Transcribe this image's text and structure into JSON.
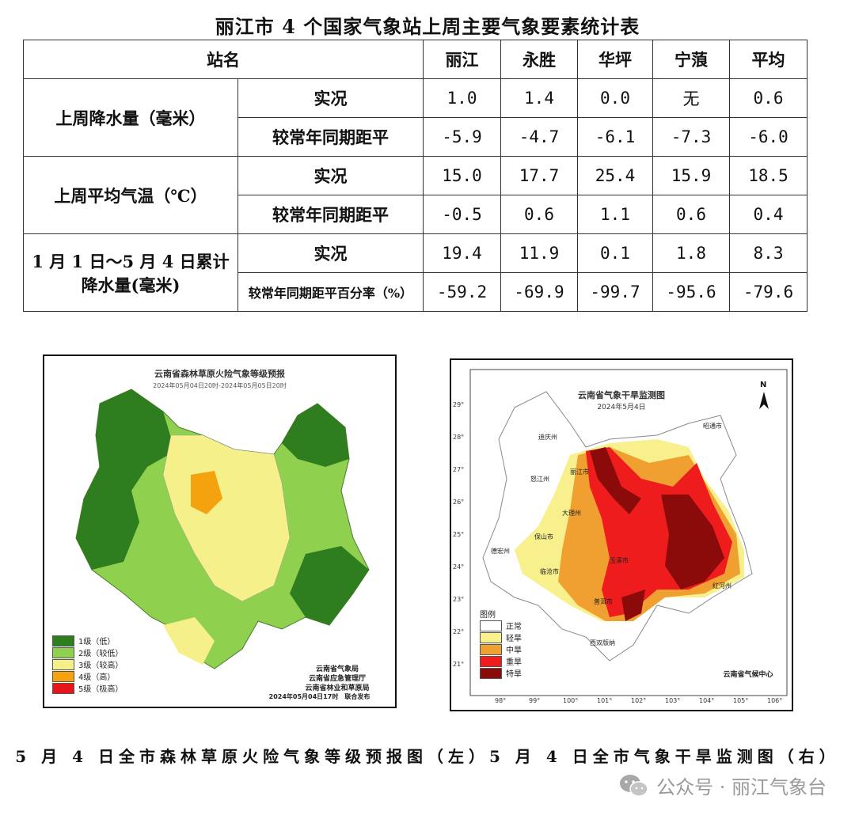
{
  "title": "丽江市 4 个国家气象站上周主要气象要素统计表",
  "table": {
    "header_label": "站名",
    "stations": [
      "丽江",
      "永胜",
      "华坪",
      "宁蒗",
      "平均"
    ],
    "groups": [
      {
        "name": "上周降水量（毫米）",
        "rows": [
          {
            "label": "实况",
            "values": [
              "1.0",
              "1.4",
              "0.0",
              "无",
              "0.6"
            ]
          },
          {
            "label": "较常年同期距平",
            "values": [
              "-5.9",
              "-4.7",
              "-6.1",
              "-7.3",
              "-6.0"
            ]
          }
        ]
      },
      {
        "name": "上周平均气温（℃）",
        "rows": [
          {
            "label": "实况",
            "values": [
              "15.0",
              "17.7",
              "25.4",
              "15.9",
              "18.5"
            ]
          },
          {
            "label": "较常年同期距平",
            "values": [
              "-0.5",
              "0.6",
              "1.1",
              "0.6",
              "0.4"
            ]
          }
        ]
      },
      {
        "name_line1": "1 月 1 日～5 月 4 日累计",
        "name_line2": "降水量(毫米)",
        "rows": [
          {
            "label": "实况",
            "values": [
              "19.4",
              "11.9",
              "0.1",
              "1.8",
              "8.3"
            ]
          },
          {
            "label": "较常年同期距平百分率（%）",
            "values": [
              "-59.2",
              "-69.9",
              "-99.7",
              "-95.6",
              "-79.6"
            ]
          }
        ]
      }
    ]
  },
  "fire_map": {
    "title": "云南省森林草原火险气象等级预报",
    "subtitle": "2024年05月04日20时-2024年05月05日20时",
    "legend": [
      {
        "label": "1级（低）",
        "color": "#2e7d1e"
      },
      {
        "label": "2级（较低）",
        "color": "#8fd14f"
      },
      {
        "label": "3级（较高）",
        "color": "#f5f08a"
      },
      {
        "label": "4级（高）",
        "color": "#f5a20f"
      },
      {
        "label": "5级（极高）",
        "color": "#e8141c"
      }
    ],
    "credit_lines": [
      "云南省气象局",
      "云南省应急管理厅",
      "云南省林业和草原局"
    ],
    "issued": "2024年05月04日17时　联合发布"
  },
  "drought_map": {
    "title": "云南省气象干旱监测图",
    "date": "2024年5月4日",
    "north": "N",
    "legend_title": "图例",
    "legend": [
      {
        "label": "正常",
        "color": "#ffffff"
      },
      {
        "label": "轻旱",
        "color": "#f7f08c"
      },
      {
        "label": "中旱",
        "color": "#f0a030"
      },
      {
        "label": "重旱",
        "color": "#ee1c1c"
      },
      {
        "label": "特旱",
        "color": "#8b0a0a"
      }
    ],
    "credit": "云南省气候中心",
    "lat_ticks": [
      "29°",
      "28°",
      "27°",
      "26°",
      "25°",
      "24°",
      "23°",
      "22°",
      "21°"
    ],
    "lon_ticks": [
      "98°",
      "99°",
      "100°",
      "101°",
      "102°",
      "103°",
      "104°",
      "105°",
      "106°"
    ],
    "city_labels": [
      "迪庆州",
      "怒江州",
      "丽江市",
      "大理州",
      "保山市",
      "德宏州",
      "临沧市",
      "普洱市",
      "玉溪市",
      "昭通市",
      "西双版纳",
      "红河州"
    ]
  },
  "caption": "5 月 4 日全市森林草原火险气象等级预报图（左）5 月 4 日全市气象干旱监测图（右）",
  "watermark": "公众号 · 丽江气象台"
}
